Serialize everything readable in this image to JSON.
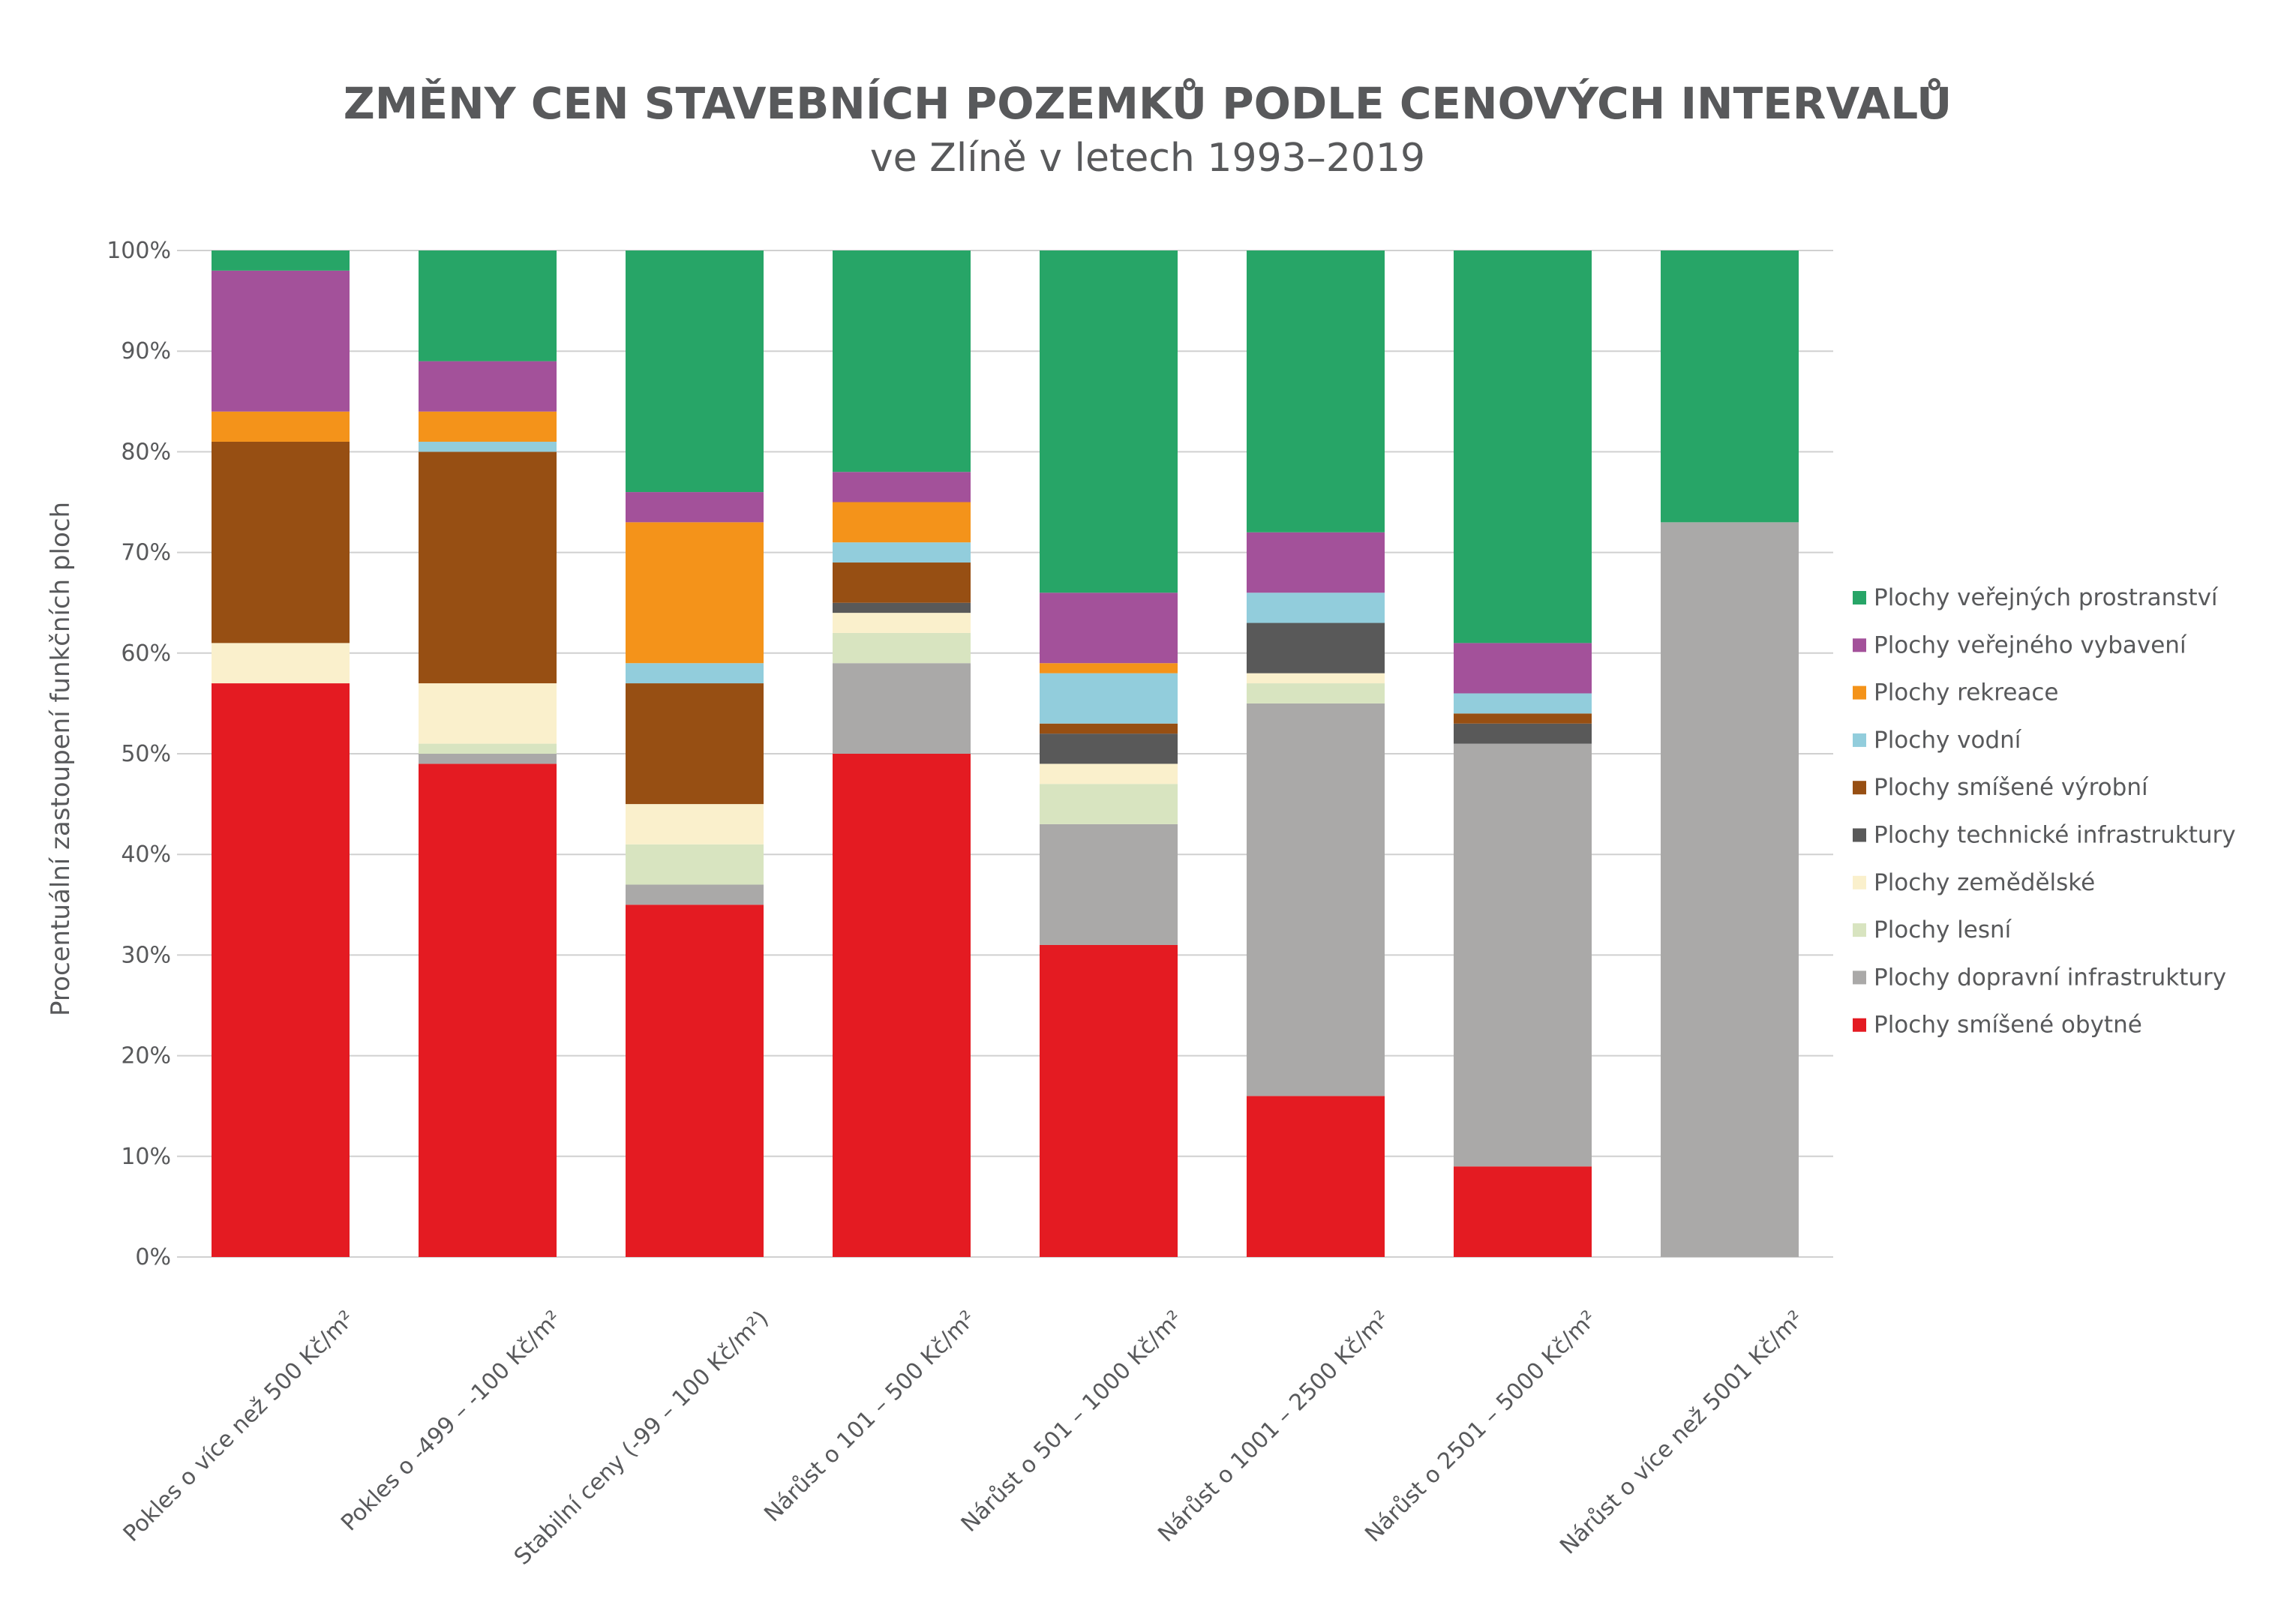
{
  "chart_data": {
    "type": "bar",
    "stacked": true,
    "title": "ZMĚNY CEN STAVEBNÍCH POZEMKŮ PODLE CENOVÝCH INTERVALŮ",
    "subtitle": "ve Zlíně v letech 1993–2019",
    "ylabel": "Procentuální zastoupení funkčních ploch",
    "xlabel": "",
    "ylim": [
      0,
      100
    ],
    "yticks": [
      "0%",
      "10%",
      "20%",
      "30%",
      "40%",
      "50%",
      "60%",
      "70%",
      "80%",
      "90%",
      "100%"
    ],
    "grid": true,
    "legend_position": "right",
    "categories": [
      "Pokles o více než 500 Kč/m²",
      "Pokles o -499 – -100 Kč/m²",
      "Stabilní ceny (-99 – 100 Kč/m²)",
      "Nárůst o 101 – 500 Kč/m²",
      "Nárůst o 501 – 1000 Kč/m²",
      "Nárůst o 1001 – 2500 Kč/m²",
      "Nárůst o 2501 – 5000 Kč/m²",
      "Nárůst o více než 5001 Kč/m²"
    ],
    "series": [
      {
        "name": "Plochy smíšené obytné",
        "color": "#e41b22",
        "values": [
          57,
          49,
          35,
          50,
          31,
          16,
          9,
          0
        ]
      },
      {
        "name": "Plochy dopravní infrastruktury",
        "color": "#aaa9a8",
        "values": [
          0,
          1,
          2,
          9,
          12,
          39,
          42,
          73
        ]
      },
      {
        "name": "Plochy lesní",
        "color": "#d8e4c0",
        "values": [
          0,
          1,
          4,
          3,
          4,
          2,
          0,
          0
        ]
      },
      {
        "name": "Plochy zemědělské",
        "color": "#faf0cc",
        "values": [
          4,
          6,
          4,
          2,
          2,
          1,
          0,
          0
        ]
      },
      {
        "name": "Plochy technické infrastruktury",
        "color": "#595959",
        "values": [
          0,
          0,
          0,
          1,
          3,
          5,
          2,
          0
        ]
      },
      {
        "name": "Plochy smíšené výrobní",
        "color": "#974f13",
        "values": [
          20,
          23,
          12,
          4,
          1,
          0,
          1,
          0
        ]
      },
      {
        "name": "Plochy vodní",
        "color": "#92cddc",
        "values": [
          0,
          1,
          2,
          2,
          5,
          3,
          2,
          0
        ]
      },
      {
        "name": "Plochy rekreace",
        "color": "#f4931a",
        "values": [
          3,
          3,
          14,
          4,
          1,
          0,
          0,
          0
        ]
      },
      {
        "name": "Plochy veřejného vybavení",
        "color": "#a3519a",
        "values": [
          14,
          5,
          3,
          3,
          7,
          6,
          5,
          0
        ]
      },
      {
        "name": "Plochy veřejných prostranství",
        "color": "#27a567",
        "values": [
          2,
          11,
          24,
          22,
          34,
          28,
          39,
          27
        ]
      }
    ]
  }
}
